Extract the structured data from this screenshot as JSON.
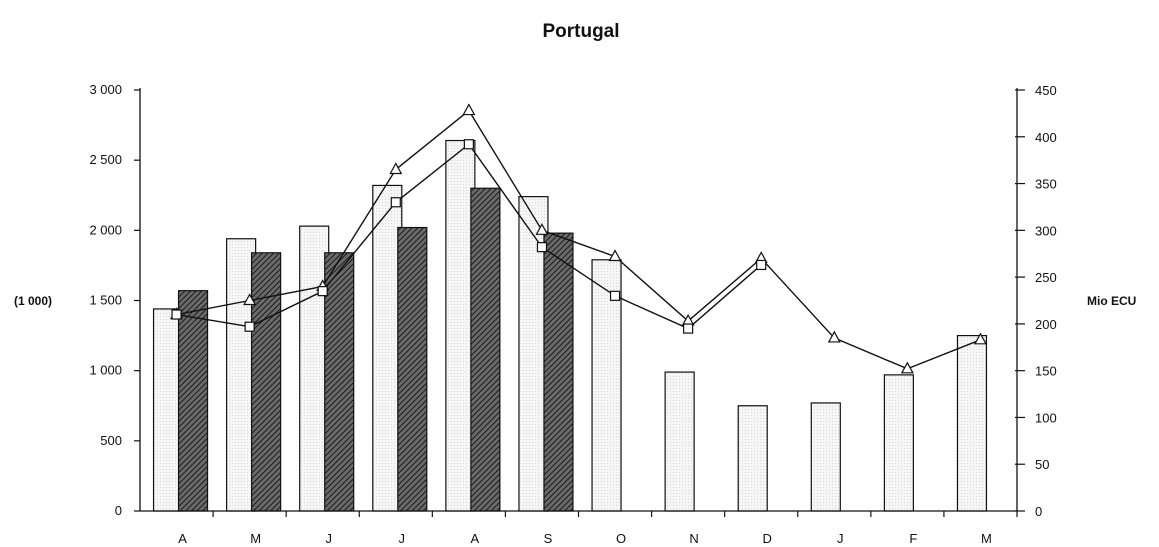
{
  "chart_data": {
    "type": "bar",
    "title": "Portugal",
    "categories": [
      "A",
      "M",
      "J",
      "J",
      "A",
      "S",
      "O",
      "N",
      "D",
      "J",
      "F",
      "M"
    ],
    "left_axis": {
      "label": "(1 000)",
      "ylim": [
        0,
        3000
      ],
      "ticks": [
        0,
        500,
        1000,
        1500,
        2000,
        2500,
        3000
      ],
      "tick_labels": [
        "0",
        "500",
        "1 000",
        "1 500",
        "2 000",
        "2 500",
        "3 000"
      ]
    },
    "right_axis": {
      "label": "Mio ECU",
      "ylim": [
        0,
        450
      ],
      "ticks": [
        0,
        50,
        100,
        150,
        200,
        250,
        300,
        350,
        400,
        450
      ],
      "tick_labels": [
        "0",
        "50",
        "100",
        "150",
        "200",
        "250",
        "300",
        "350",
        "400",
        "450"
      ]
    },
    "bar_series": [
      {
        "style": "light",
        "color": "#f4f4f4",
        "axis": "left",
        "values": [
          1440,
          1940,
          2030,
          2320,
          2640,
          2240,
          1790,
          990,
          750,
          770,
          970,
          1250
        ]
      },
      {
        "style": "hatched",
        "color": "#3a3a3a",
        "axis": "left",
        "values": [
          1570,
          1840,
          1840,
          2020,
          2300,
          1980,
          null,
          null,
          null,
          null,
          null,
          null
        ]
      }
    ],
    "line_series": [
      {
        "marker": "triangle",
        "axis": "right",
        "values": [
          210,
          225,
          240,
          365,
          428,
          300,
          272,
          203,
          270,
          185,
          152,
          183
        ]
      },
      {
        "marker": "square",
        "axis": "right",
        "values": [
          210,
          197,
          235,
          330,
          392,
          282,
          230,
          195,
          263,
          null,
          null,
          null
        ]
      }
    ],
    "grid": false
  }
}
